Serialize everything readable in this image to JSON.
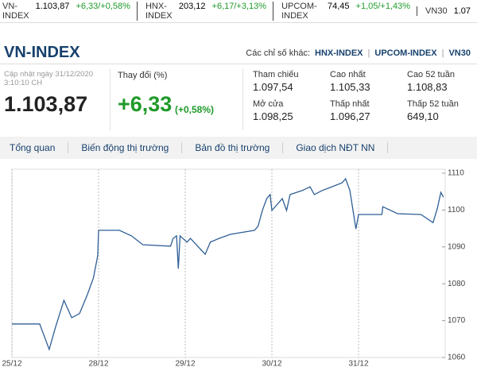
{
  "ticker": [
    {
      "name": "VN-INDEX",
      "value": "1.103,87",
      "change": "+6,33/+0,58%"
    },
    {
      "name": "HNX-INDEX",
      "value": "203,12",
      "change": "+6,17/+3,13%"
    },
    {
      "name": "UPCOM-INDEX",
      "value": "74,45",
      "change": "+1,05/+1,43%"
    },
    {
      "name": "VN30",
      "value": "1.07"
    }
  ],
  "header": {
    "title": "VN-INDEX",
    "other_label": "Các chỉ số khác:",
    "other_links": [
      "HNX-INDEX",
      "UPCOM-INDEX",
      "VN30"
    ]
  },
  "summary": {
    "updated": "Cập nhật ngày 31/12/2020",
    "time": "3:10:10 CH",
    "value": "1.103,87",
    "change_label": "Thay đổi (%)",
    "change": "+6,33",
    "change_pct": "(+0,58%)"
  },
  "stats": [
    {
      "label": "Tham chiếu",
      "value": "1.097,54"
    },
    {
      "label": "Cao nhất",
      "value": "1.105,33"
    },
    {
      "label": "Cao 52 tuần",
      "value": "1.108,83"
    },
    {
      "label": "Mở cửa",
      "value": "1.098,25"
    },
    {
      "label": "Thấp nhất",
      "value": "1.096,27"
    },
    {
      "label": "Thấp 52 tuần",
      "value": "649,10"
    }
  ],
  "tabs": [
    "Tổng quan",
    "Biến động thị trường",
    "Bản đồ thị trường",
    "Giao dịch NĐT NN"
  ],
  "chart_data": {
    "type": "line",
    "x": [
      0,
      3.2,
      3.7,
      4.3,
      5.0,
      6.0,
      6.9,
      7.8,
      8.7,
      9.4,
      9.9,
      10.0,
      12.4,
      13.8,
      15.1,
      18.3,
      18.6,
      19.0,
      19.2,
      19.4,
      20.2,
      20.6,
      22.3,
      22.9,
      23.9,
      25.2,
      28.0,
      28.4,
      28.9,
      29.4,
      29.8,
      30.0,
      31.2,
      31.7,
      32.1,
      33.5,
      34.4,
      34.9,
      35.8,
      36.7,
      38.1,
      38.5,
      39.0,
      39.7,
      40.0,
      42.7,
      42.8,
      44.5,
      47.2,
      48.6,
      49.1,
      49.5,
      49.8
    ],
    "series": [
      {
        "color": "#2f5f96",
        "values": [
          1069.1,
          1069.1,
          1066,
          1062.2,
          1068,
          1075.5,
          1070.8,
          1071.9,
          1077,
          1081.6,
          1087.6,
          1094.5,
          1094.5,
          1093.0,
          1090.6,
          1090.2,
          1092.3,
          1093.0,
          1084.1,
          1093.0,
          1091.3,
          1092.3,
          1088.0,
          1091.3,
          1092.3,
          1093.4,
          1094.5,
          1095.6,
          1099.9,
          1103.1,
          1104.2,
          1099.9,
          1103.1,
          1099.9,
          1104.2,
          1105.3,
          1106.3,
          1104.2,
          1105.3,
          1106.1,
          1107.4,
          1108.5,
          1105.3,
          1094.9,
          1098.8,
          1098.8,
          1100.9,
          1099,
          1098.8,
          1096.6,
          1100.5,
          1104.8,
          1103.5
        ]
      }
    ],
    "xlim": [
      0,
      50
    ],
    "xticks": [
      {
        "value": 0,
        "label": "25/12"
      },
      {
        "value": 10,
        "label": "28/12"
      },
      {
        "value": 20,
        "label": "29/12"
      },
      {
        "value": 30,
        "label": "30/12"
      },
      {
        "value": 40,
        "label": "31/12"
      }
    ],
    "ylim": [
      1060,
      1110
    ],
    "yticks": [
      1060,
      1070,
      1080,
      1090,
      1100,
      1110
    ],
    "grid": true
  }
}
